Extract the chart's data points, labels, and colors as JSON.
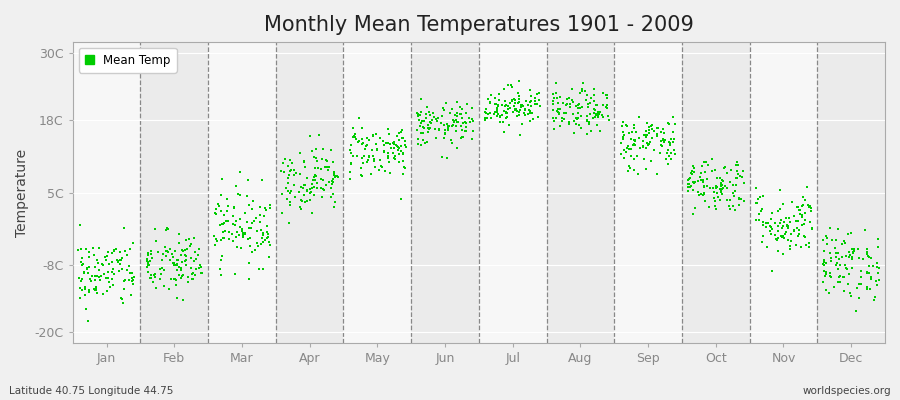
{
  "title": "Monthly Mean Temperatures 1901 - 2009",
  "ylabel": "Temperature",
  "yticks": [
    -20,
    -8,
    5,
    18,
    30
  ],
  "ytick_labels": [
    "-20C",
    "-8C",
    "5C",
    "18C",
    "30C"
  ],
  "ylim": [
    -22,
    32
  ],
  "dot_color": "#00cc00",
  "dot_size": 3,
  "background_color": "#f0f0f0",
  "figure_color": "#f0f0f0",
  "title_fontsize": 15,
  "months": [
    "Jan",
    "Feb",
    "Mar",
    "Apr",
    "May",
    "Jun",
    "Jul",
    "Aug",
    "Sep",
    "Oct",
    "Nov",
    "Dec"
  ],
  "month_means": [
    -9.5,
    -8.0,
    -1.0,
    7.5,
    12.5,
    17.0,
    20.5,
    19.5,
    14.0,
    6.5,
    -0.5,
    -8.0
  ],
  "month_stds": [
    3.2,
    3.0,
    3.5,
    3.0,
    2.5,
    2.0,
    1.8,
    2.0,
    2.5,
    2.5,
    3.0,
    3.2
  ],
  "n_points": 109,
  "bottom_left_text": "Latitude 40.75 Longitude 44.75",
  "bottom_right_text": "worldspecies.org",
  "legend_label": "Mean Temp",
  "vline_color": "#888888",
  "spine_color": "#aaaaaa",
  "tick_color": "#888888"
}
